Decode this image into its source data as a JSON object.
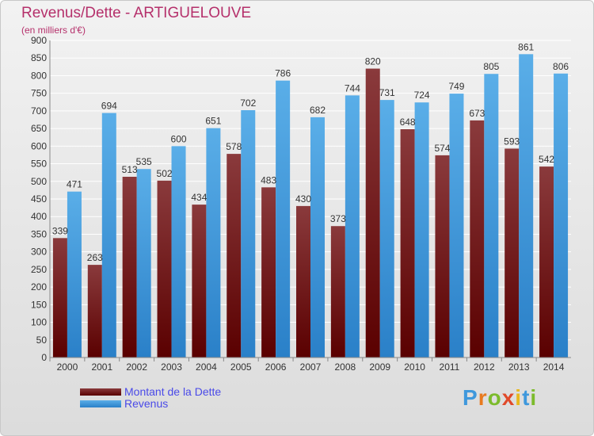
{
  "title": "Revenus/Dette - ARTIGUELOUVE",
  "subtitle": "(en milliers d'€)",
  "colors": {
    "dette": "#6b1214",
    "revenus": "#3f98dc",
    "title": "#b5306b"
  },
  "logo": "Proxiti",
  "chart_data": {
    "type": "bar",
    "title": "Revenus/Dette - ARTIGUELOUVE",
    "ylabel": "(en milliers d'€)",
    "categories": [
      "2000",
      "2001",
      "2002",
      "2003",
      "2004",
      "2005",
      "2006",
      "2007",
      "2008",
      "2009",
      "2010",
      "2011",
      "2012",
      "2013",
      "2014"
    ],
    "series": [
      {
        "name": "Montant de la Dette",
        "values": [
          339,
          263,
          513,
          502,
          434,
          578,
          483,
          430,
          373,
          820,
          648,
          574,
          673,
          593,
          542
        ]
      },
      {
        "name": "Revenus",
        "values": [
          471,
          694,
          535,
          600,
          651,
          702,
          786,
          682,
          744,
          731,
          724,
          749,
          805,
          861,
          806
        ]
      }
    ],
    "ylim": [
      0,
      900
    ],
    "yticks": [
      0,
      50,
      100,
      150,
      200,
      250,
      300,
      350,
      400,
      450,
      500,
      550,
      600,
      650,
      700,
      750,
      800,
      850,
      900
    ],
    "grid": true,
    "legend": "bottom-left"
  }
}
